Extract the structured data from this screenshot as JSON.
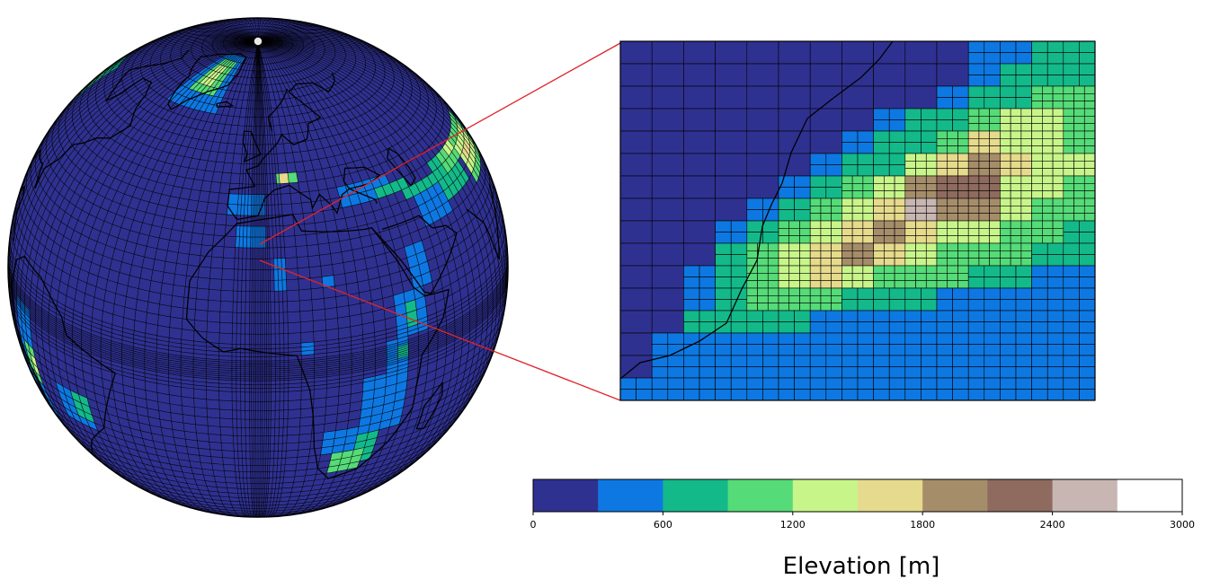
{
  "colorbar": {
    "title": "Elevation [m]",
    "min": 0,
    "max": 3000,
    "step": 300,
    "tick_values": [
      0,
      600,
      1200,
      1800,
      2400,
      3000
    ],
    "tick_labels": [
      "0",
      "600",
      "1200",
      "1800",
      "2400",
      "3000"
    ],
    "colors": [
      "#2f3191",
      "#0e78e2",
      "#14b98a",
      "#55db78",
      "#c8f58a",
      "#e6da8c",
      "#a68d6a",
      "#8e6b5e",
      "#c8b6b2",
      "#ffffff"
    ]
  },
  "globe": {
    "land_class_color": "#0e78e2",
    "ocean_color": "#2f3191",
    "grid_color": "#000000",
    "coastline_color": "#000000"
  },
  "zoom_inset": {
    "connector_color": "#e0242a",
    "frame_color": "#000000"
  }
}
